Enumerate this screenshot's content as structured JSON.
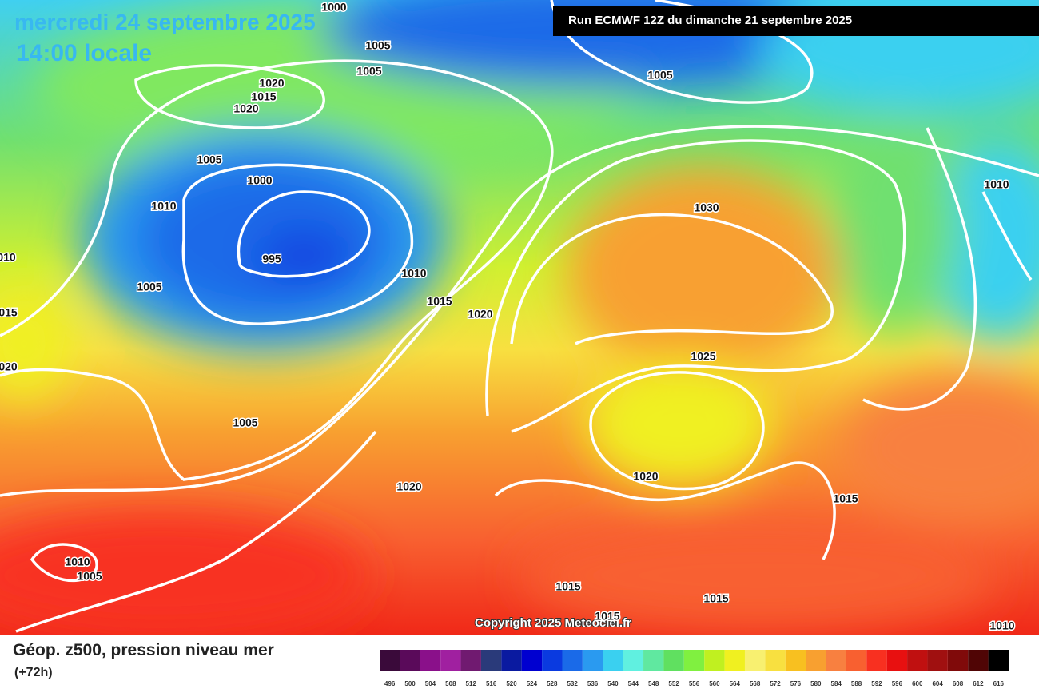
{
  "header": {
    "title": "mercredi 24 septembre 2025",
    "subtitle": "14:00 locale",
    "run": "Run ECMWF 12Z du dimanche 21 septembre 2025"
  },
  "isobar_labels": [
    "1000",
    "1005",
    "1005",
    "1020",
    "1015",
    "1020",
    "1005",
    "1005",
    "1000",
    "1010",
    "1010",
    "010",
    "995",
    "1010",
    "1005",
    "1015",
    "1020",
    "015",
    "1030",
    "1025",
    "020",
    "1005",
    "1020",
    "1020",
    "1015",
    "1010",
    "1005",
    "1015",
    "1015",
    "1015",
    "1010"
  ],
  "copyright": "Copyright 2025 Meteociel.fr",
  "legend": {
    "title": "Géop. z500, pression niveau mer",
    "lead": "(+72h)",
    "ticks": [
      496,
      500,
      504,
      508,
      512,
      516,
      520,
      524,
      528,
      532,
      536,
      540,
      544,
      548,
      552,
      556,
      560,
      564,
      568,
      572,
      576,
      580,
      584,
      588,
      592,
      596,
      600,
      604,
      608,
      612,
      616
    ],
    "colors": [
      "#3a0a3a",
      "#5a0a5a",
      "#8a108a",
      "#a020a0",
      "#701a70",
      "#2a3a7a",
      "#0a1aa0",
      "#0000d0",
      "#0a3ae0",
      "#1a6ae8",
      "#2a9af0",
      "#3ad0f0",
      "#60f0e0",
      "#60e8a0",
      "#60e060",
      "#80f040",
      "#c0f020",
      "#f0f020",
      "#f8f070",
      "#f8e040",
      "#f8c020",
      "#f8a030",
      "#f88040",
      "#f86030",
      "#f83020",
      "#e81010",
      "#c01010",
      "#a01010",
      "#800a0a",
      "#500505",
      "#000000"
    ]
  }
}
